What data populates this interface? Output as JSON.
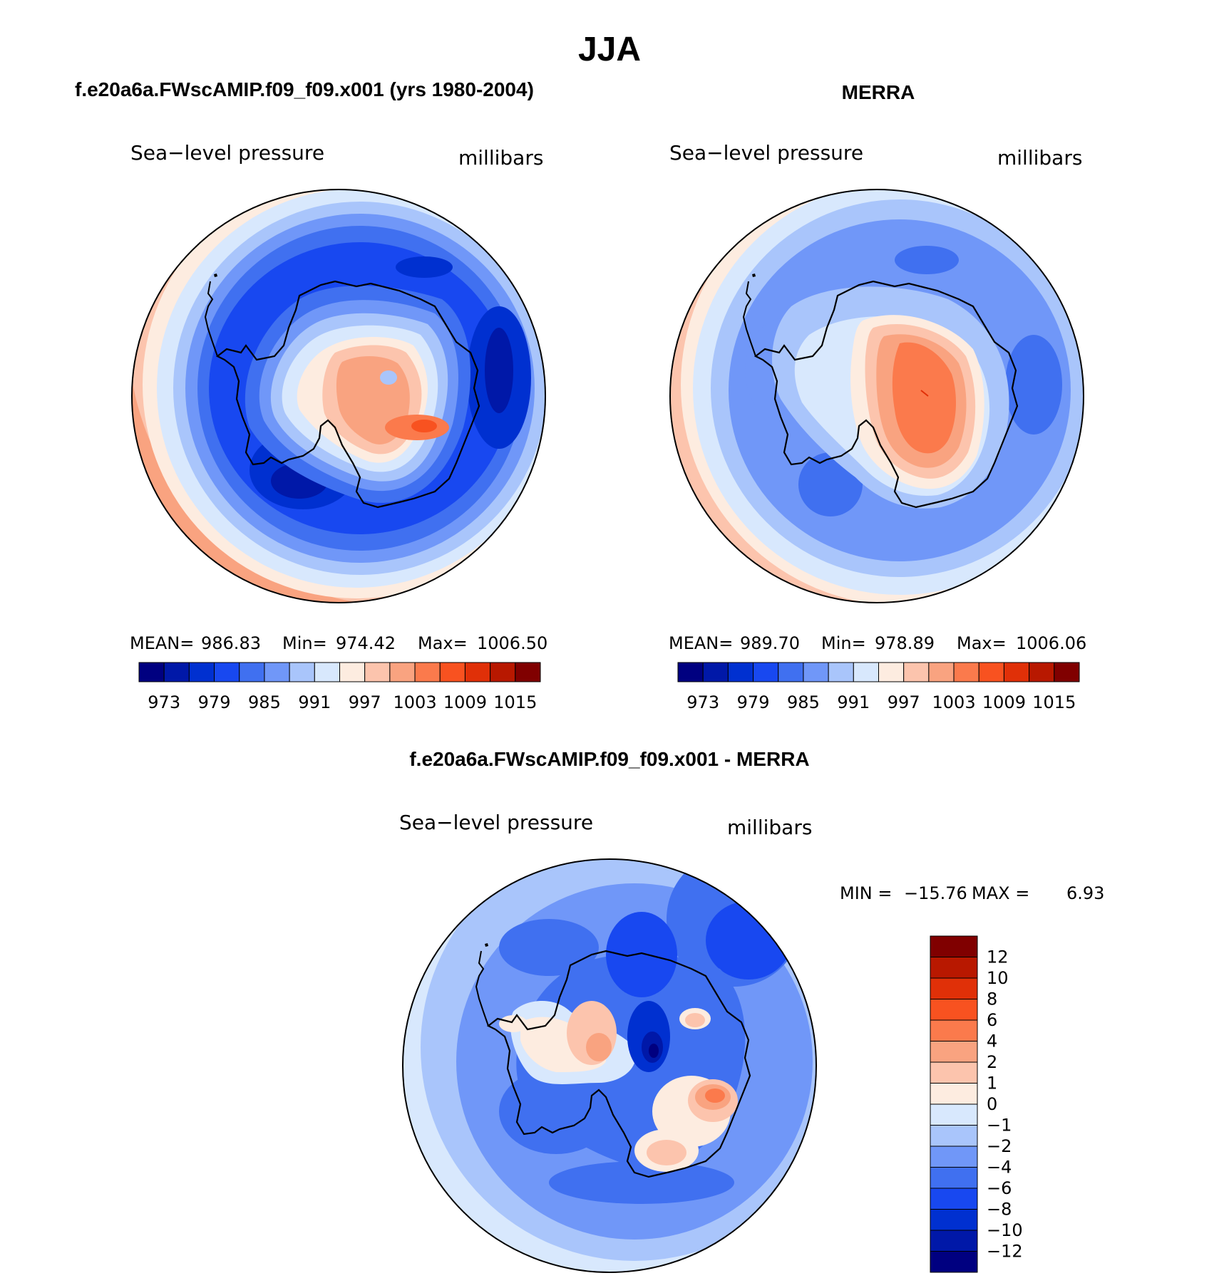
{
  "title": "JJA",
  "colors": {
    "abs_scale": [
      "#000080",
      "#0018a8",
      "#0030d0",
      "#1848f0",
      "#4070f0",
      "#7097f8",
      "#a9c5fb",
      "#d8e8fd",
      "#fdece0",
      "#fcc4ad",
      "#f9a380",
      "#fb7a4c",
      "#f85220",
      "#e03008",
      "#b81800",
      "#800000"
    ],
    "diff_scale": [
      "#000080",
      "#0018a8",
      "#0030d0",
      "#1848f0",
      "#4070f0",
      "#7097f8",
      "#a9c5fb",
      "#d8e8fd",
      "#fdece0",
      "#fcc4ad",
      "#f9a380",
      "#fb7a4c",
      "#f85220",
      "#e03008",
      "#b81800",
      "#800000"
    ]
  },
  "panels": [
    {
      "name": "model",
      "header": "f.e20a6a.FWscAMIP.f09_f09.x001 (yrs 1980-2004)",
      "variable": "Sea−level pressure",
      "units": "millibars",
      "stats": {
        "mean_label": "MEAN=",
        "mean": "986.83",
        "min_label": "Min=",
        "min": "974.42",
        "max_label": "Max=",
        "max": "1006.50"
      },
      "colorbar_ticks": [
        "973",
        "979",
        "985",
        "991",
        "997",
        "1003",
        "1009",
        "1015"
      ]
    },
    {
      "name": "obs",
      "header": "MERRA",
      "variable": "Sea−level pressure",
      "units": "millibars",
      "stats": {
        "mean_label": "MEAN=",
        "mean": "989.70",
        "min_label": "Min=",
        "min": "978.89",
        "max_label": "Max=",
        "max": "1006.06"
      },
      "colorbar_ticks": [
        "973",
        "979",
        "985",
        "991",
        "997",
        "1003",
        "1009",
        "1015"
      ]
    },
    {
      "name": "diff",
      "header": "f.e20a6a.FWscAMIP.f09_f09.x001 - MERRA",
      "variable": "Sea−level pressure",
      "units": "millibars",
      "stats": {
        "min_label": "MIN =",
        "min": "−15.76",
        "max_label": "MAX =",
        "max": "6.93"
      },
      "colorbar_ticks": [
        "12",
        "10",
        "8",
        "6",
        "4",
        "2",
        "1",
        "0",
        "−1",
        "−2",
        "−4",
        "−6",
        "−8",
        "−10",
        "−12"
      ]
    }
  ],
  "chart_data": [
    {
      "type": "heatmap",
      "projection": "south-polar-stereographic",
      "title": "f.e20a6a.FWscAMIP.f09_f09.x001 (yrs 1980-2004)",
      "variable": "Sea−level pressure",
      "units": "millibars",
      "levels": [
        973,
        976,
        979,
        982,
        985,
        988,
        991,
        994,
        997,
        1000,
        1003,
        1006,
        1009,
        1012,
        1015
      ],
      "mean": 986.83,
      "min": 974.42,
      "max": 1006.5
    },
    {
      "type": "heatmap",
      "projection": "south-polar-stereographic",
      "title": "MERRA",
      "variable": "Sea−level pressure",
      "units": "millibars",
      "levels": [
        973,
        976,
        979,
        982,
        985,
        988,
        991,
        994,
        997,
        1000,
        1003,
        1006,
        1009,
        1012,
        1015
      ],
      "mean": 989.7,
      "min": 978.89,
      "max": 1006.06
    },
    {
      "type": "heatmap",
      "projection": "south-polar-stereographic",
      "title": "f.e20a6a.FWscAMIP.f09_f09.x001 - MERRA",
      "variable": "Sea−level pressure",
      "units": "millibars",
      "levels": [
        -12,
        -10,
        -8,
        -6,
        -4,
        -2,
        -1,
        0,
        1,
        2,
        4,
        6,
        8,
        10,
        12
      ],
      "min": -15.76,
      "max": 6.93
    }
  ]
}
